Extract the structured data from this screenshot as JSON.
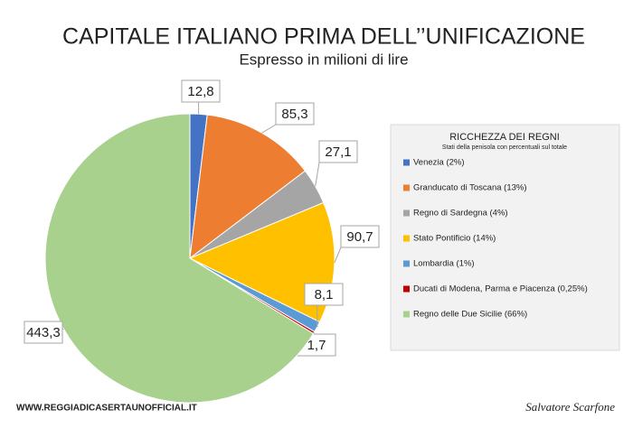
{
  "chart_data": {
    "type": "pie",
    "title": "CAPITALE ITALIANO PRIMA DELL’’UNIFICAZIONE",
    "subtitle": "Espresso in milioni di lire",
    "legend_title": "RICCHEZZA DEI REGNI",
    "legend_subtitle": "Stati della penisola con percentuali sul totale",
    "categories": [
      "Venezia (2%)",
      "Granducato di Toscana (13%)",
      "Regno di Sardegna (4%)",
      "Stato Pontificio (14%)",
      "Lombardia (1%)",
      "Ducati di Modena, Parma e Piacenza (0,25%)",
      "Regno delle Due Sicilie (66%)"
    ],
    "values": [
      12.8,
      85.3,
      27.1,
      90.7,
      8.1,
      1.7,
      443.3
    ],
    "value_labels": [
      "12,8",
      "85,3",
      "27,1",
      "90,7",
      "8,1",
      "1,7",
      "443,3"
    ],
    "colors": [
      "#4472c4",
      "#ed7d31",
      "#a5a5a5",
      "#ffc000",
      "#5b9bd5",
      "#c00000",
      "#a9d18e"
    ],
    "legend_position": "right"
  },
  "footer": {
    "website": "WWW.REGGIADICASERTAUNOFFICIAL.IT",
    "author": "Salvatore Scarfone"
  }
}
